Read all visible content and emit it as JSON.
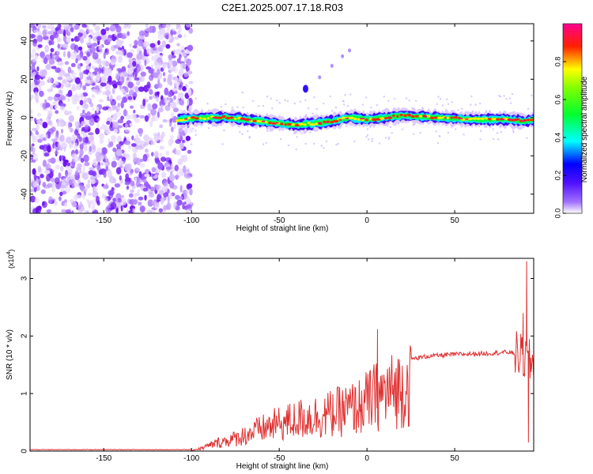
{
  "title": "C2E1.2025.007.17.18.R03",
  "chart_data": [
    {
      "type": "heatmap",
      "xlabel": "Height of straight line (km)",
      "ylabel": "Frequency (Hz)",
      "xlim": [
        -192,
        95
      ],
      "ylim": [
        -50,
        49
      ],
      "xticks": [
        "-150",
        "-100",
        "-50",
        "0",
        "50"
      ],
      "xtick_values": [
        -150,
        -100,
        -50,
        0,
        50
      ],
      "yticks": [
        "40",
        "20",
        "0",
        "-20",
        "-40"
      ],
      "ytick_values": [
        40,
        20,
        0,
        -20,
        -40
      ],
      "noise_region_x": [
        -192,
        -100
      ],
      "signal_region_x": [
        -108,
        95
      ],
      "signal_center_freq": [
        [
          -108,
          -1
        ],
        [
          -90,
          0
        ],
        [
          -80,
          0
        ],
        [
          -70,
          -1
        ],
        [
          -60,
          -2
        ],
        [
          -50,
          -3
        ],
        [
          -40,
          -4
        ],
        [
          -30,
          -3
        ],
        [
          -20,
          -2
        ],
        [
          -10,
          0
        ],
        [
          0,
          -1
        ],
        [
          10,
          0
        ],
        [
          20,
          1
        ],
        [
          40,
          0
        ],
        [
          60,
          -1
        ],
        [
          80,
          -1
        ],
        [
          90,
          -2
        ],
        [
          95,
          -1
        ]
      ],
      "branch_points": [
        [
          -35,
          15
        ],
        [
          -27,
          21
        ],
        [
          -20,
          27
        ],
        [
          -14,
          32
        ],
        [
          -10,
          35
        ]
      ],
      "colorbar": {
        "label": "Normalized spectral amplitude",
        "range": [
          0,
          1
        ],
        "ticks": [
          "0.0",
          "0.2",
          "0.4",
          "0.6",
          "0.8"
        ],
        "tick_values": [
          0,
          0.2,
          0.4,
          0.6,
          0.8
        ],
        "colors": [
          "#ffffff",
          "#8020ff",
          "#0000ff",
          "#00ffff",
          "#00ff00",
          "#ffff00",
          "#ff0000",
          "#ff0080"
        ]
      },
      "grid": false
    },
    {
      "type": "line",
      "xlabel": "Height of straight line (km)",
      "ylabel": "SNR (10 * v/v)",
      "yscale_label": "(x10",
      "yscale_exp": "4",
      "yscale_close": ")",
      "xlim": [
        -192,
        95
      ],
      "ylim": [
        0,
        3.35
      ],
      "xticks": [
        "-150",
        "-100",
        "-50",
        "0",
        "50"
      ],
      "xtick_values": [
        -150,
        -100,
        -50,
        0,
        50
      ],
      "yticks": [
        "0",
        "1",
        "2",
        "3"
      ],
      "ytick_values": [
        0,
        1,
        2,
        3
      ],
      "color": "#e03030",
      "envelope": [
        [
          -192,
          0.02
        ],
        [
          -100,
          0.02
        ],
        [
          -95,
          0.06
        ],
        [
          -85,
          0.2
        ],
        [
          -75,
          0.3
        ],
        [
          -65,
          0.45
        ],
        [
          -55,
          0.6
        ],
        [
          -45,
          0.7
        ],
        [
          -35,
          0.8
        ],
        [
          -25,
          0.85
        ],
        [
          -15,
          0.95
        ],
        [
          -5,
          1.05
        ],
        [
          5,
          1.3
        ],
        [
          15,
          1.45
        ],
        [
          25,
          1.6
        ],
        [
          35,
          1.65
        ],
        [
          50,
          1.68
        ],
        [
          70,
          1.7
        ],
        [
          80,
          1.72
        ],
        [
          85,
          1.7
        ],
        [
          95,
          1.5
        ]
      ],
      "spikes": [
        [
          6,
          2.12
        ],
        [
          89,
          2.4
        ],
        [
          91,
          3.3
        ],
        [
          92,
          0.15
        ]
      ],
      "grid": false
    }
  ]
}
